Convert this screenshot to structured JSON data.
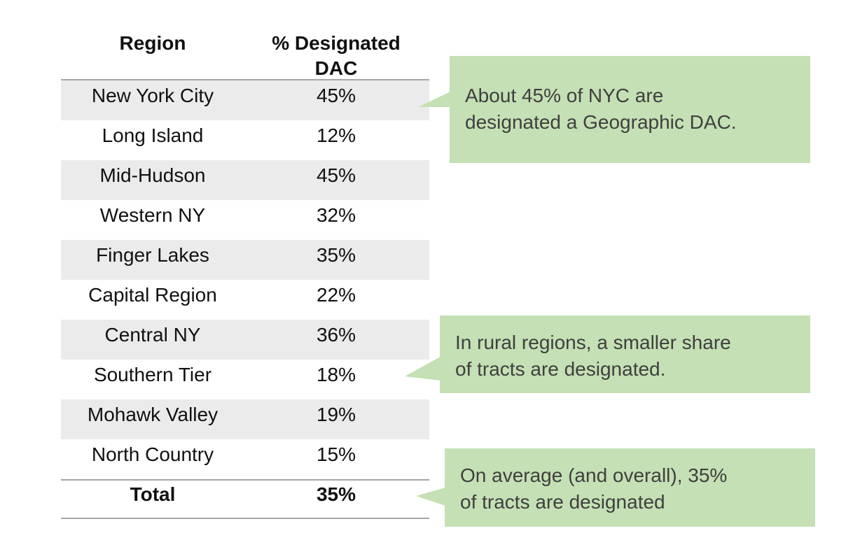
{
  "table": {
    "headers": {
      "region": "Region",
      "pct_line1": "% Designated",
      "pct_line2": "DAC"
    },
    "rows": [
      {
        "region": "New York City",
        "pct": "45%"
      },
      {
        "region": "Long Island",
        "pct": "12%"
      },
      {
        "region": "Mid-Hudson",
        "pct": "45%"
      },
      {
        "region": "Western NY",
        "pct": "32%"
      },
      {
        "region": "Finger Lakes",
        "pct": "35%"
      },
      {
        "region": "Capital Region",
        "pct": "22%"
      },
      {
        "region": "Central NY",
        "pct": "36%"
      },
      {
        "region": "Southern Tier",
        "pct": "18%"
      },
      {
        "region": "Mohawk Valley",
        "pct": "19%"
      },
      {
        "region": "North Country",
        "pct": "15%"
      }
    ],
    "total": {
      "region": "Total",
      "pct": "35%"
    }
  },
  "callouts": {
    "nyc": {
      "line1": "About 45% of NYC are",
      "line2": "designated a Geographic DAC."
    },
    "rural": {
      "line1": "In rural regions, a smaller share",
      "line2": "of tracts are designated."
    },
    "average": {
      "line1": "On average (and overall), 35%",
      "line2": "of tracts are designated"
    }
  },
  "colors": {
    "callout_fill": "#c5e0b4",
    "row_shade": "#ebebeb",
    "rule": "#a6a6a6"
  }
}
